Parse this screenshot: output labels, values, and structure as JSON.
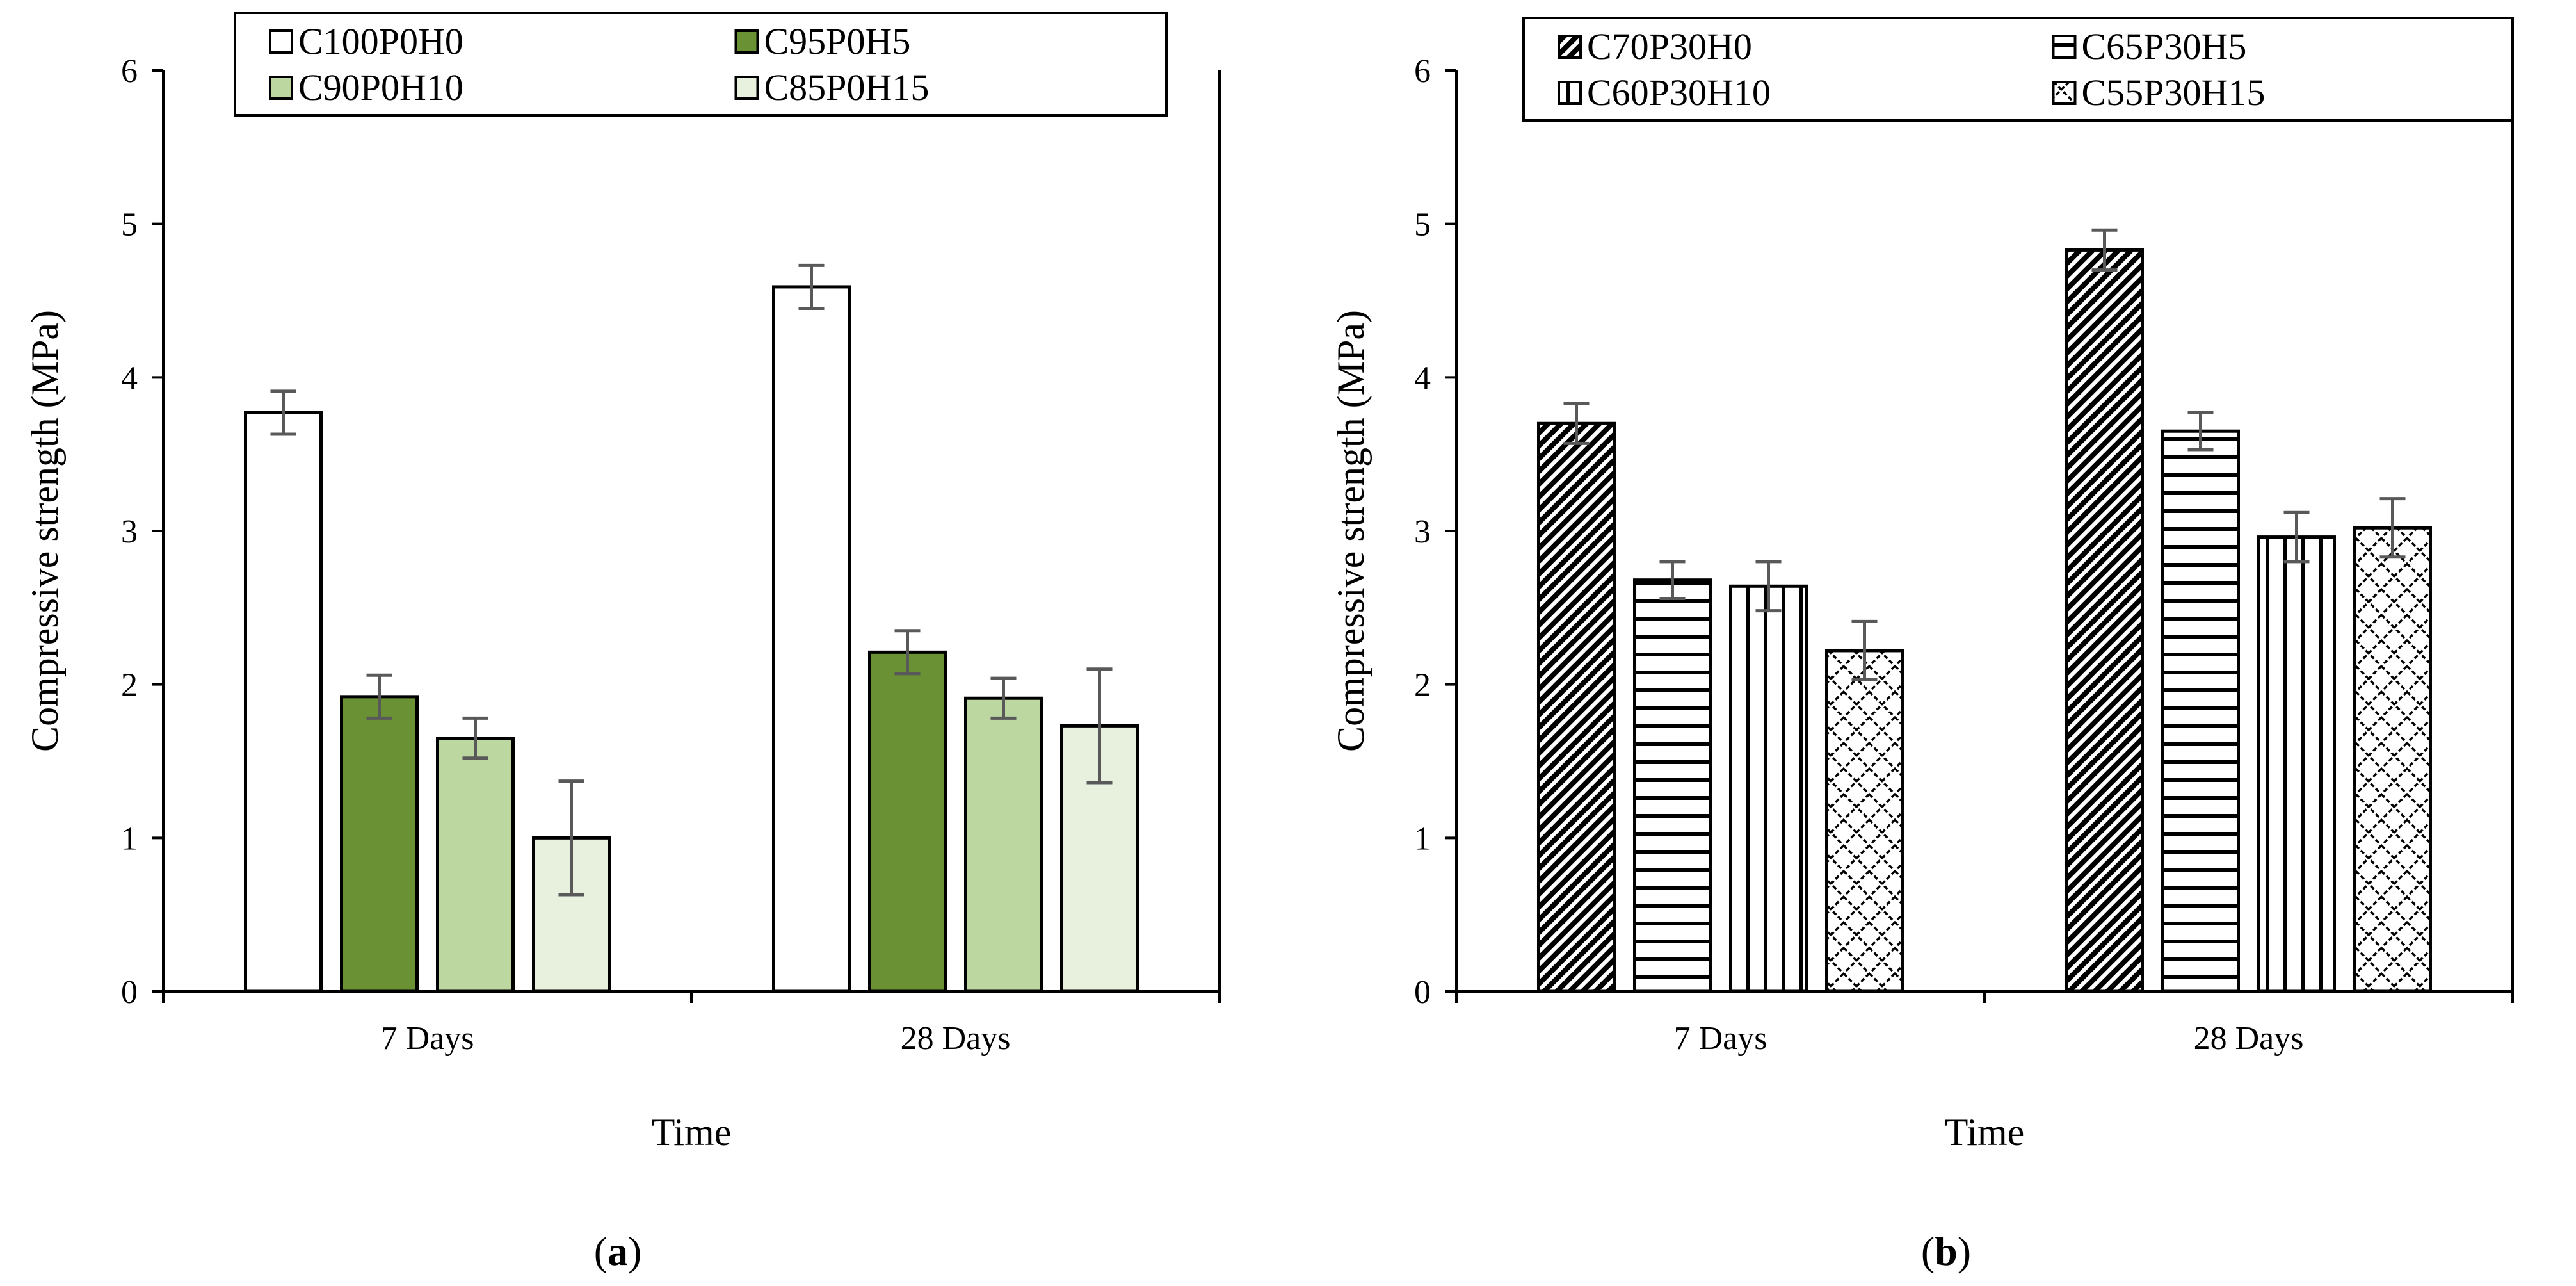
{
  "chart_data": [
    {
      "type": "bar",
      "panel_label": "a",
      "categories": [
        "7 Days",
        "28 Days"
      ],
      "series": [
        {
          "name": "C100P0H0",
          "values": [
            3.77,
            4.59
          ],
          "error": [
            0.14,
            0.14
          ],
          "fill": "#ffffff",
          "pattern": "none"
        },
        {
          "name": "C95P0H5",
          "values": [
            1.92,
            2.21
          ],
          "error": [
            0.14,
            0.14
          ],
          "fill": "#6a9133",
          "pattern": "none"
        },
        {
          "name": "C90P0H10",
          "values": [
            1.65,
            1.91
          ],
          "error": [
            0.13,
            0.13
          ],
          "fill": "#bcd8a0",
          "pattern": "none"
        },
        {
          "name": "C85P0H15",
          "values": [
            1.0,
            1.73
          ],
          "error": [
            0.37,
            0.37
          ],
          "fill": "#e8f0de",
          "pattern": "none"
        }
      ],
      "xlabel": "Time",
      "ylabel": "Compressive strength (MPa)",
      "ylim": [
        0,
        6
      ],
      "yticks": [
        "0",
        "1",
        "2",
        "3",
        "4",
        "5",
        "6"
      ],
      "grid": false,
      "legend_position": "top"
    },
    {
      "type": "bar",
      "panel_label": "b",
      "categories": [
        "7 Days",
        "28 Days"
      ],
      "series": [
        {
          "name": "C70P30H0",
          "values": [
            3.7,
            4.83
          ],
          "error": [
            0.13,
            0.13
          ],
          "fill": "#ffffff",
          "pattern": "diagonal"
        },
        {
          "name": "C65P30H5",
          "values": [
            2.68,
            3.65
          ],
          "error": [
            0.12,
            0.12
          ],
          "fill": "#ffffff",
          "pattern": "horizontal"
        },
        {
          "name": "C60P30H10",
          "values": [
            2.64,
            2.96
          ],
          "error": [
            0.16,
            0.16
          ],
          "fill": "#ffffff",
          "pattern": "vertical"
        },
        {
          "name": "C55P30H15",
          "values": [
            2.22,
            3.02
          ],
          "error": [
            0.19,
            0.19
          ],
          "fill": "#ffffff",
          "pattern": "lattice"
        }
      ],
      "xlabel": "Time",
      "ylabel": "Compressive strength (MPa)",
      "ylim": [
        0,
        6
      ],
      "yticks": [
        "0",
        "1",
        "2",
        "3",
        "4",
        "5",
        "6"
      ],
      "grid": false,
      "legend_position": "top"
    }
  ],
  "colors": {
    "axis": "#000000",
    "error_bar": "#595959"
  }
}
